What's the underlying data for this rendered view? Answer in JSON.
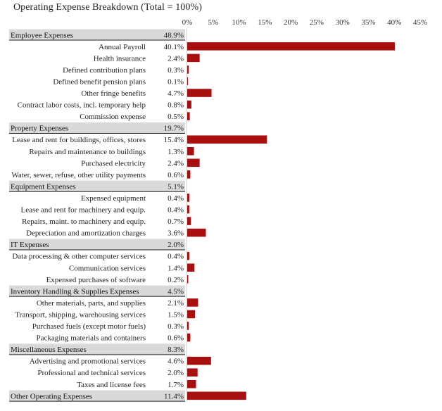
{
  "chart_data": {
    "type": "bar",
    "title": "Operating Expense Breakdown (Total = 100%)",
    "x_ticks": [
      "0%",
      "5%",
      "10%",
      "15%",
      "20%",
      "25%",
      "30%",
      "35%",
      "40%",
      "45%"
    ],
    "xlim": [
      0,
      45
    ],
    "grid": false,
    "bar_color": "#a81010",
    "header_bg": "#d9d9d9",
    "rows": [
      {
        "label": "Employee Expenses",
        "value": 48.9,
        "value_label": "48.9%",
        "header": true
      },
      {
        "label": "Annual Payroll",
        "value": 40.1,
        "value_label": "40.1%"
      },
      {
        "label": "Health insurance",
        "value": 2.4,
        "value_label": "2.4%"
      },
      {
        "label": "Defined contribution  plans",
        "value": 0.3,
        "value_label": "0.3%"
      },
      {
        "label": "Defined benefit pension plans",
        "value": 0.1,
        "value_label": "0.1%"
      },
      {
        "label": "Other fringe benefits",
        "value": 4.7,
        "value_label": "4.7%"
      },
      {
        "label": "Contract labor costs, incl. temporary help",
        "value": 0.8,
        "value_label": "0.8%"
      },
      {
        "label": "Commission expense",
        "value": 0.5,
        "value_label": "0.5%"
      },
      {
        "label": "Property Expenses",
        "value": 19.7,
        "value_label": "19.7%",
        "header": true
      },
      {
        "label": "Lease and rent for buildings, offices, stores",
        "value": 15.4,
        "value_label": "15.4%"
      },
      {
        "label": "Repairs and maintenance to buildings",
        "value": 1.3,
        "value_label": "1.3%"
      },
      {
        "label": "Purchased electricity",
        "value": 2.4,
        "value_label": "2.4%"
      },
      {
        "label": "Water, sewer, refuse, other utility payments",
        "value": 0.6,
        "value_label": "0.6%"
      },
      {
        "label": "Equipment Expenses",
        "value": 5.1,
        "value_label": "5.1%",
        "header": true
      },
      {
        "label": "Expensed equipment",
        "value": 0.4,
        "value_label": "0.4%"
      },
      {
        "label": "Lease and rent for machinery and equip.",
        "value": 0.4,
        "value_label": "0.4%"
      },
      {
        "label": "Repairs, maint. to machinery and equip.",
        "value": 0.7,
        "value_label": "0.7%"
      },
      {
        "label": "Depreciation and amortization charges",
        "value": 3.6,
        "value_label": "3.6%"
      },
      {
        "label": "IT Expenses",
        "value": 2.0,
        "value_label": "2.0%",
        "header": true
      },
      {
        "label": "Data processing & other computer services",
        "value": 0.4,
        "value_label": "0.4%"
      },
      {
        "label": "Communication services",
        "value": 1.4,
        "value_label": "1.4%"
      },
      {
        "label": "Expensed purchases of software",
        "value": 0.2,
        "value_label": "0.2%"
      },
      {
        "label": "Inventory Handling & Supplies Expenses",
        "value": 4.5,
        "value_label": "4.5%",
        "header": true
      },
      {
        "label": "Other materials, parts, and supplies",
        "value": 2.1,
        "value_label": "2.1%"
      },
      {
        "label": "Transport, shipping, warehousing services",
        "value": 1.5,
        "value_label": "1.5%"
      },
      {
        "label": "Purchased fuels (except motor fuels)",
        "value": 0.3,
        "value_label": "0.3%"
      },
      {
        "label": "Packaging materials and containers",
        "value": 0.6,
        "value_label": "0.6%"
      },
      {
        "label": "Miscellaneous Expenses",
        "value": 8.3,
        "value_label": "8.3%",
        "header": true
      },
      {
        "label": "Advertising and promotional services",
        "value": 4.6,
        "value_label": "4.6%"
      },
      {
        "label": "Professional and technical services",
        "value": 2.0,
        "value_label": "2.0%"
      },
      {
        "label": "Taxes and license fees",
        "value": 1.7,
        "value_label": "1.7%"
      },
      {
        "label": "Other Operating Expenses",
        "value": 11.4,
        "value_label": "11.4%",
        "header": true,
        "bar": true
      }
    ]
  }
}
